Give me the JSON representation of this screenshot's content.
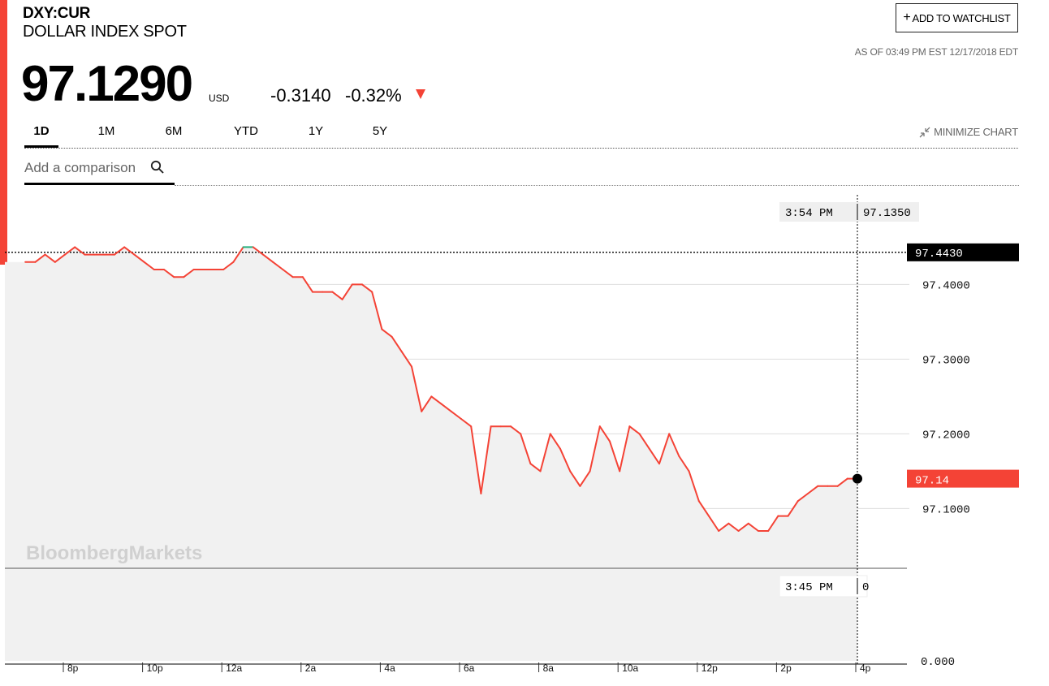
{
  "header": {
    "ticker": "DXY:CUR",
    "name": "DOLLAR INDEX SPOT",
    "watchlist_label": "ADD TO WATCHLIST",
    "as_of": "AS OF 03:49 PM EST 12/17/2018 EDT",
    "price": "97.1290",
    "currency": "USD",
    "change": "-0.3140",
    "change_pct": "-0.32%",
    "direction": "down",
    "down_color": "#f44336",
    "up_color": "#26b07e"
  },
  "tabs": [
    "1D",
    "1M",
    "6M",
    "YTD",
    "1Y",
    "5Y"
  ],
  "active_tab": "1D",
  "minimize_label": "MINIMIZE CHART",
  "comparison": {
    "placeholder": "Add a comparison"
  },
  "chart_data": {
    "type": "line",
    "title": "",
    "xlabel": "",
    "ylabel": "",
    "x_ticks": [
      "8p",
      "10p",
      "12a",
      "2a",
      "4a",
      "6a",
      "8a",
      "10a",
      "12p",
      "2p",
      "4p"
    ],
    "y_ticks": [
      "97.4000",
      "97.3000",
      "97.2000",
      "97.1000"
    ],
    "ylim": [
      97.02,
      97.52
    ],
    "x_range": [
      "7:00 PM",
      "4:00 PM"
    ],
    "previous_close": "97.4430",
    "last_label": "97.14",
    "crosshair": {
      "time": "3:54 PM",
      "value": "97.1350"
    },
    "volume_crosshair": {
      "time": "3:45 PM",
      "value": "0"
    },
    "volume_axis_label": "0.000",
    "watermark": "BloombergMarkets",
    "series": [
      {
        "x": [
          0.0,
          0.25,
          0.5,
          0.75,
          1.0,
          1.25,
          1.5,
          1.75,
          2.0,
          2.25,
          2.5,
          2.75,
          3.0,
          3.25,
          3.5,
          3.75,
          4.0,
          4.25,
          4.5,
          4.75,
          5.0,
          5.25,
          5.5,
          5.75,
          6.0,
          6.25,
          6.5,
          6.75,
          7.0,
          7.25,
          7.5,
          7.75,
          8.0,
          8.25,
          8.5,
          8.75,
          9.0,
          9.25,
          9.5,
          9.75,
          10.0,
          10.25,
          10.5,
          10.75,
          11.0,
          11.25,
          11.5,
          11.75,
          12.0,
          12.25,
          12.5,
          12.75,
          13.0,
          13.25,
          13.5,
          13.75,
          14.0,
          14.25,
          14.5,
          14.75,
          15.0,
          15.25,
          15.5,
          15.75,
          16.0,
          16.25,
          16.5,
          16.75,
          17.0,
          17.25,
          17.5,
          17.75,
          18.0,
          18.25,
          18.5,
          18.75,
          19.0,
          19.25,
          19.5,
          19.75,
          20.0,
          20.25,
          20.5,
          20.75,
          21.0
        ],
        "y": [
          97.43,
          97.43,
          97.44,
          97.43,
          97.44,
          97.45,
          97.44,
          97.44,
          97.44,
          97.44,
          97.45,
          97.44,
          97.43,
          97.42,
          97.42,
          97.41,
          97.41,
          97.42,
          97.42,
          97.42,
          97.42,
          97.43,
          97.45,
          97.45,
          97.44,
          97.43,
          97.42,
          97.41,
          97.41,
          97.39,
          97.39,
          97.39,
          97.38,
          97.4,
          97.4,
          97.39,
          97.34,
          97.33,
          97.31,
          97.29,
          97.23,
          97.25,
          97.24,
          97.23,
          97.22,
          97.21,
          97.12,
          97.21,
          97.21,
          97.21,
          97.2,
          97.16,
          97.15,
          97.2,
          97.18,
          97.15,
          97.13,
          97.15,
          97.21,
          97.19,
          97.15,
          97.21,
          97.2,
          97.18,
          97.16,
          97.2,
          97.17,
          97.15,
          97.11,
          97.09,
          97.07,
          97.08,
          97.07,
          97.08,
          97.07,
          97.07,
          97.09,
          97.09,
          97.11,
          97.12,
          97.13,
          97.13,
          97.13,
          97.14,
          97.14
        ]
      }
    ]
  }
}
